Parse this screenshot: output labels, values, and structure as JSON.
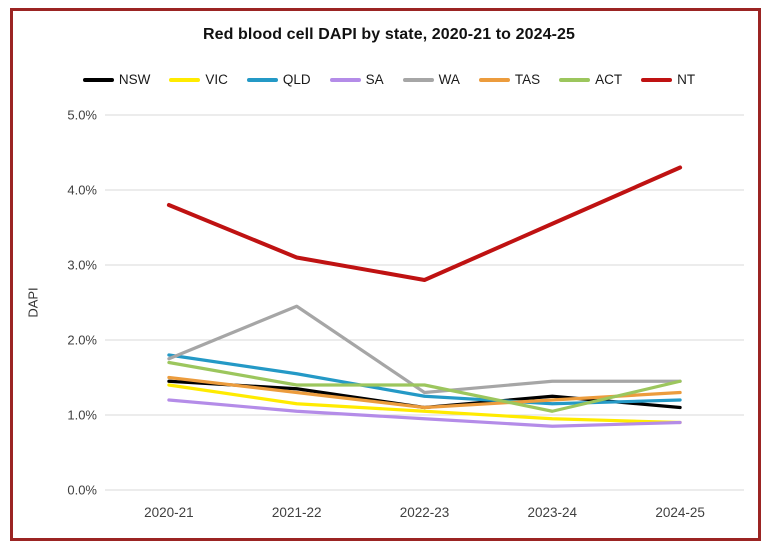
{
  "frame": {
    "border_color": "#9b2423"
  },
  "chart_data": {
    "type": "line",
    "title": "Red blood cell DAPI by state, 2020-21 to 2024-25",
    "xlabel": "",
    "ylabel": "DAPI",
    "categories": [
      "2020-21",
      "2021-22",
      "2022-23",
      "2023-24",
      "2024-25"
    ],
    "series": [
      {
        "name": "NSW",
        "color": "#000000",
        "values": [
          1.45,
          1.35,
          1.1,
          1.25,
          1.1
        ]
      },
      {
        "name": "VIC",
        "color": "#ffeb00",
        "values": [
          1.4,
          1.15,
          1.05,
          0.95,
          0.9
        ]
      },
      {
        "name": "QLD",
        "color": "#2499c6",
        "values": [
          1.8,
          1.55,
          1.25,
          1.15,
          1.2
        ]
      },
      {
        "name": "SA",
        "color": "#b48ce8",
        "values": [
          1.2,
          1.05,
          0.95,
          0.85,
          0.9
        ]
      },
      {
        "name": "WA",
        "color": "#a6a6a6",
        "values": [
          1.75,
          2.45,
          1.3,
          1.45,
          1.45
        ]
      },
      {
        "name": "TAS",
        "color": "#ec9c3d",
        "values": [
          1.5,
          1.3,
          1.1,
          1.2,
          1.3
        ]
      },
      {
        "name": "ACT",
        "color": "#9cc65d",
        "values": [
          1.7,
          1.4,
          1.4,
          1.05,
          1.45
        ]
      },
      {
        "name": "NT",
        "color": "#bf1212",
        "values": [
          3.8,
          3.1,
          2.8,
          3.55,
          4.3
        ]
      }
    ],
    "ylim": [
      0,
      5
    ],
    "yticks": [
      {
        "value": 0,
        "label": "0.0%"
      },
      {
        "value": 1,
        "label": "1.0%"
      },
      {
        "value": 2,
        "label": "2.0%"
      },
      {
        "value": 3,
        "label": "3.0%"
      },
      {
        "value": 4,
        "label": "4.0%"
      },
      {
        "value": 5,
        "label": "5.0%"
      }
    ],
    "grid": true,
    "grid_color": "#d9d9d9",
    "tick_color": "#404040",
    "legend_position": "top"
  }
}
